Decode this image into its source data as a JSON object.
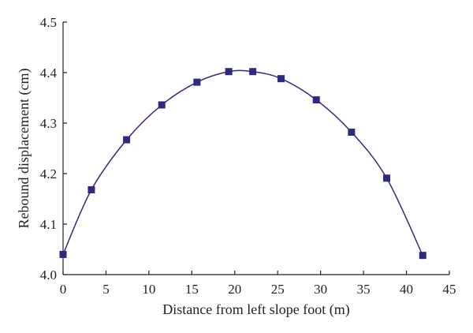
{
  "chart_data": {
    "type": "line",
    "xlabel": "Distance from left slope foot (m)",
    "ylabel": "Rebound displacement (cm)",
    "xlim": [
      0,
      45
    ],
    "ylim": [
      4.0,
      4.5
    ],
    "xticks": [
      "0",
      "5",
      "10",
      "15",
      "20",
      "25",
      "30",
      "35",
      "40",
      "45"
    ],
    "yticks": [
      "4.0",
      "4.1",
      "4.2",
      "4.3",
      "4.4",
      "4.5"
    ],
    "grid": false,
    "legend": "none",
    "marker": "square",
    "color": "#2e2a7f",
    "series": [
      {
        "x": [
          0,
          3.3,
          7.4,
          11.5,
          15.6,
          19.3,
          22.1,
          25.4,
          29.5,
          33.6,
          37.7,
          41.9
        ],
        "values": [
          4.04,
          4.168,
          4.267,
          4.336,
          4.381,
          4.402,
          4.402,
          4.388,
          4.346,
          4.282,
          4.191,
          4.038
        ]
      }
    ]
  }
}
